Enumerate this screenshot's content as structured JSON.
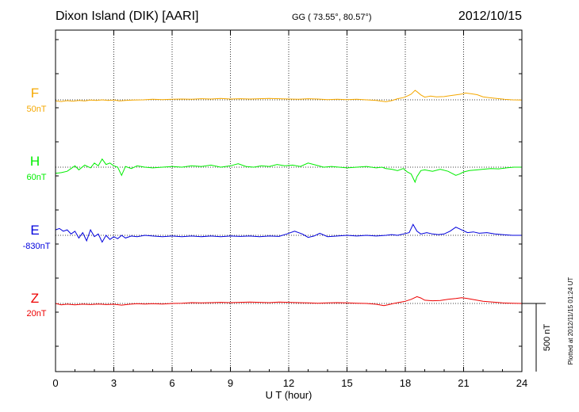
{
  "header": {
    "station": "Dixon Island (DIK)  [AARI]",
    "coords": "GG ( 73.55°,  80.57°)",
    "date": "2012/10/15"
  },
  "footer": {
    "plotted": "Plotted at 2012/11/15 01:24 UT"
  },
  "chart_data": {
    "type": "line",
    "xlabel": "U T (hour)",
    "xlim": [
      0,
      24
    ],
    "xticks": [
      0,
      3,
      6,
      9,
      12,
      15,
      18,
      21,
      24
    ],
    "xtick_labels": [
      "0",
      "3",
      "6",
      "9",
      "12",
      "15",
      "18",
      "21",
      "24"
    ],
    "grid": true,
    "scale_bar_label": "500 nT",
    "scale_bar_nT": 500,
    "series": [
      {
        "name": "F",
        "baseline_label": "50nT",
        "baseline_nT": 50,
        "color": "#f5a800",
        "points": [
          [
            0,
            -8
          ],
          [
            0.3,
            -12
          ],
          [
            0.6,
            -6
          ],
          [
            0.9,
            -10
          ],
          [
            1.2,
            -4
          ],
          [
            1.5,
            -8
          ],
          [
            1.8,
            -2
          ],
          [
            2.1,
            -4
          ],
          [
            2.4,
            0
          ],
          [
            2.7,
            -4
          ],
          [
            3.0,
            -2
          ],
          [
            3.3,
            -8
          ],
          [
            3.6,
            -4
          ],
          [
            4.0,
            -2
          ],
          [
            4.5,
            0
          ],
          [
            5.0,
            4
          ],
          [
            5.5,
            2
          ],
          [
            6.0,
            4
          ],
          [
            6.5,
            6
          ],
          [
            7.0,
            4
          ],
          [
            7.5,
            8
          ],
          [
            8.0,
            6
          ],
          [
            8.5,
            10
          ],
          [
            9.0,
            6
          ],
          [
            9.5,
            8
          ],
          [
            10.0,
            6
          ],
          [
            10.5,
            8
          ],
          [
            11.0,
            10
          ],
          [
            11.5,
            8
          ],
          [
            12.0,
            6
          ],
          [
            12.5,
            4
          ],
          [
            13.0,
            8
          ],
          [
            13.5,
            6
          ],
          [
            14.0,
            2
          ],
          [
            14.5,
            4
          ],
          [
            15.0,
            2
          ],
          [
            15.5,
            4
          ],
          [
            16.0,
            0
          ],
          [
            16.5,
            -4
          ],
          [
            16.8,
            -10
          ],
          [
            17.0,
            -14
          ],
          [
            17.3,
            -6
          ],
          [
            17.6,
            8
          ],
          [
            17.9,
            16
          ],
          [
            18.1,
            28
          ],
          [
            18.3,
            42
          ],
          [
            18.5,
            70
          ],
          [
            18.6,
            60
          ],
          [
            18.8,
            36
          ],
          [
            19.0,
            20
          ],
          [
            19.3,
            28
          ],
          [
            19.6,
            22
          ],
          [
            20.0,
            24
          ],
          [
            20.3,
            30
          ],
          [
            20.6,
            36
          ],
          [
            20.9,
            42
          ],
          [
            21.1,
            50
          ],
          [
            21.4,
            44
          ],
          [
            21.7,
            38
          ],
          [
            22.0,
            22
          ],
          [
            22.3,
            16
          ],
          [
            22.7,
            10
          ],
          [
            23.1,
            4
          ],
          [
            23.5,
            0
          ],
          [
            24.0,
            -2
          ]
        ]
      },
      {
        "name": "H",
        "baseline_label": "60nT",
        "baseline_nT": 60,
        "color": "#00ee00",
        "points": [
          [
            0,
            -45
          ],
          [
            0.3,
            -40
          ],
          [
            0.6,
            -30
          ],
          [
            0.8,
            -10
          ],
          [
            1.0,
            10
          ],
          [
            1.2,
            -20
          ],
          [
            1.5,
            15
          ],
          [
            1.8,
            -5
          ],
          [
            2.0,
            30
          ],
          [
            2.2,
            10
          ],
          [
            2.4,
            60
          ],
          [
            2.6,
            20
          ],
          [
            2.8,
            30
          ],
          [
            3.0,
            10
          ],
          [
            3.2,
            0
          ],
          [
            3.4,
            -60
          ],
          [
            3.6,
            5
          ],
          [
            3.9,
            -10
          ],
          [
            4.2,
            10
          ],
          [
            4.6,
            0
          ],
          [
            5.0,
            -5
          ],
          [
            5.5,
            0
          ],
          [
            6.0,
            5
          ],
          [
            6.5,
            0
          ],
          [
            7.0,
            10
          ],
          [
            7.5,
            5
          ],
          [
            8.0,
            15
          ],
          [
            8.5,
            0
          ],
          [
            9.0,
            10
          ],
          [
            9.4,
            25
          ],
          [
            9.8,
            5
          ],
          [
            10.2,
            0
          ],
          [
            10.6,
            10
          ],
          [
            11.0,
            5
          ],
          [
            11.4,
            20
          ],
          [
            11.8,
            10
          ],
          [
            12.2,
            15
          ],
          [
            12.6,
            5
          ],
          [
            13.0,
            30
          ],
          [
            13.4,
            15
          ],
          [
            13.8,
            0
          ],
          [
            14.2,
            5
          ],
          [
            14.6,
            0
          ],
          [
            15.0,
            -5
          ],
          [
            15.5,
            0
          ],
          [
            16.0,
            5
          ],
          [
            16.5,
            -5
          ],
          [
            16.8,
            0
          ],
          [
            17.0,
            -10
          ],
          [
            17.3,
            -15
          ],
          [
            17.6,
            -25
          ],
          [
            17.9,
            -10
          ],
          [
            18.1,
            -35
          ],
          [
            18.3,
            -50
          ],
          [
            18.5,
            -110
          ],
          [
            18.6,
            -70
          ],
          [
            18.8,
            -25
          ],
          [
            19.0,
            -20
          ],
          [
            19.4,
            -30
          ],
          [
            19.8,
            -15
          ],
          [
            20.2,
            -30
          ],
          [
            20.6,
            -60
          ],
          [
            20.8,
            -50
          ],
          [
            21.0,
            -35
          ],
          [
            21.3,
            -25
          ],
          [
            21.7,
            -20
          ],
          [
            22.0,
            -15
          ],
          [
            22.4,
            -10
          ],
          [
            22.8,
            -12
          ],
          [
            23.2,
            -5
          ],
          [
            23.6,
            0
          ],
          [
            24.0,
            0
          ]
        ]
      },
      {
        "name": "E",
        "baseline_label": "-830nT",
        "baseline_nT": -830,
        "color": "#0000dd",
        "points": [
          [
            0,
            40
          ],
          [
            0.2,
            50
          ],
          [
            0.4,
            30
          ],
          [
            0.6,
            40
          ],
          [
            0.8,
            10
          ],
          [
            1.0,
            30
          ],
          [
            1.2,
            -20
          ],
          [
            1.4,
            20
          ],
          [
            1.6,
            -40
          ],
          [
            1.8,
            40
          ],
          [
            2.0,
            -10
          ],
          [
            2.2,
            10
          ],
          [
            2.4,
            -50
          ],
          [
            2.6,
            0
          ],
          [
            2.8,
            -30
          ],
          [
            3.0,
            -10
          ],
          [
            3.2,
            -25
          ],
          [
            3.4,
            0
          ],
          [
            3.6,
            -20
          ],
          [
            3.9,
            -5
          ],
          [
            4.2,
            -10
          ],
          [
            4.6,
            0
          ],
          [
            5.0,
            -5
          ],
          [
            5.5,
            -10
          ],
          [
            6.0,
            -5
          ],
          [
            6.5,
            -10
          ],
          [
            7.0,
            -5
          ],
          [
            7.5,
            -10
          ],
          [
            8.0,
            -5
          ],
          [
            8.5,
            -10
          ],
          [
            9.0,
            -5
          ],
          [
            9.5,
            -8
          ],
          [
            10.0,
            -5
          ],
          [
            10.5,
            -10
          ],
          [
            11.0,
            -5
          ],
          [
            11.5,
            -8
          ],
          [
            11.9,
            10
          ],
          [
            12.3,
            30
          ],
          [
            12.7,
            10
          ],
          [
            13.0,
            -15
          ],
          [
            13.3,
            -5
          ],
          [
            13.6,
            15
          ],
          [
            14.0,
            -10
          ],
          [
            14.5,
            -5
          ],
          [
            15.0,
            0
          ],
          [
            15.5,
            -5
          ],
          [
            16.0,
            0
          ],
          [
            16.5,
            -5
          ],
          [
            17.0,
            0
          ],
          [
            17.3,
            5
          ],
          [
            17.6,
            0
          ],
          [
            17.9,
            10
          ],
          [
            18.2,
            20
          ],
          [
            18.4,
            80
          ],
          [
            18.6,
            30
          ],
          [
            18.8,
            10
          ],
          [
            19.1,
            20
          ],
          [
            19.4,
            10
          ],
          [
            19.7,
            5
          ],
          [
            20.0,
            10
          ],
          [
            20.3,
            30
          ],
          [
            20.6,
            60
          ],
          [
            20.9,
            40
          ],
          [
            21.2,
            20
          ],
          [
            21.5,
            25
          ],
          [
            21.8,
            15
          ],
          [
            22.2,
            20
          ],
          [
            22.6,
            10
          ],
          [
            23.0,
            5
          ],
          [
            23.5,
            0
          ],
          [
            24.0,
            0
          ]
        ]
      },
      {
        "name": "Z",
        "baseline_label": "20nT",
        "baseline_nT": 20,
        "color": "#ee0000",
        "points": [
          [
            0,
            0
          ],
          [
            0.3,
            -10
          ],
          [
            0.6,
            -5
          ],
          [
            1.0,
            -10
          ],
          [
            1.4,
            -5
          ],
          [
            1.8,
            -8
          ],
          [
            2.2,
            -4
          ],
          [
            2.6,
            -8
          ],
          [
            3.0,
            -6
          ],
          [
            3.4,
            -12
          ],
          [
            3.8,
            -6
          ],
          [
            4.2,
            -2
          ],
          [
            4.6,
            -4
          ],
          [
            5.0,
            -2
          ],
          [
            5.5,
            -4
          ],
          [
            6.0,
            0
          ],
          [
            6.5,
            2
          ],
          [
            7.0,
            6
          ],
          [
            7.5,
            4
          ],
          [
            8.0,
            6
          ],
          [
            8.5,
            8
          ],
          [
            9.0,
            6
          ],
          [
            9.5,
            8
          ],
          [
            10.0,
            10
          ],
          [
            10.5,
            8
          ],
          [
            11.0,
            6
          ],
          [
            11.5,
            10
          ],
          [
            12.0,
            8
          ],
          [
            12.5,
            6
          ],
          [
            13.0,
            4
          ],
          [
            13.5,
            2
          ],
          [
            14.0,
            4
          ],
          [
            14.5,
            6
          ],
          [
            15.0,
            4
          ],
          [
            15.5,
            2
          ],
          [
            16.0,
            0
          ],
          [
            16.5,
            -6
          ],
          [
            16.9,
            -16
          ],
          [
            17.1,
            -10
          ],
          [
            17.4,
            0
          ],
          [
            17.7,
            8
          ],
          [
            18.0,
            16
          ],
          [
            18.3,
            30
          ],
          [
            18.6,
            50
          ],
          [
            18.8,
            40
          ],
          [
            19.0,
            24
          ],
          [
            19.4,
            20
          ],
          [
            19.8,
            22
          ],
          [
            20.2,
            30
          ],
          [
            20.6,
            36
          ],
          [
            20.9,
            42
          ],
          [
            21.2,
            36
          ],
          [
            21.6,
            26
          ],
          [
            22.0,
            16
          ],
          [
            22.5,
            10
          ],
          [
            23.0,
            4
          ],
          [
            23.5,
            2
          ],
          [
            24.0,
            0
          ]
        ]
      }
    ]
  }
}
